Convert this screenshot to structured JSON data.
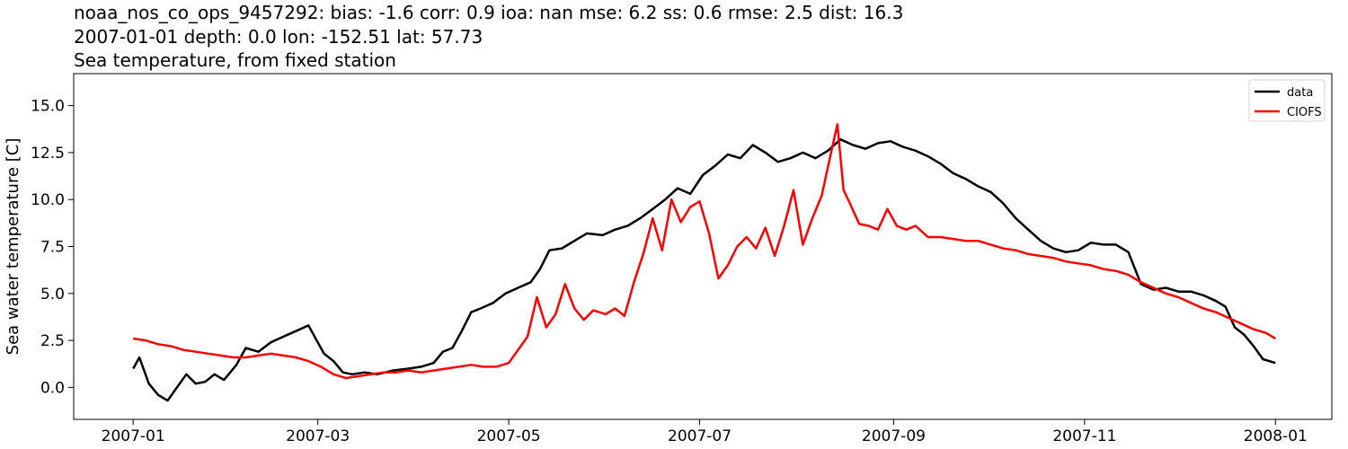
{
  "chart_data": {
    "type": "line",
    "title_lines": [
      "noaa_nos_co_ops_9457292: bias: -1.6  corr: 0.9  ioa: nan  mse: 6.2  ss: 0.6  rmse: 2.5  dist: 16.3",
      "2007-01-01 depth: 0.0 lon: -152.51 lat: 57.73",
      "Sea temperature, from fixed station"
    ],
    "xlabel": "",
    "ylabel": "Sea water temperature [C]",
    "xlim": [
      "2006-12-13",
      "2008-01-19"
    ],
    "ylim": [
      -1.7,
      16.7
    ],
    "x_ticks": [
      "2007-01",
      "2007-03",
      "2007-05",
      "2007-07",
      "2007-09",
      "2007-11",
      "2008-01"
    ],
    "y_ticks": [
      "0.0",
      "2.5",
      "5.0",
      "7.5",
      "10.0",
      "12.5",
      "15.0"
    ],
    "legend": {
      "placement": "upper right",
      "entries": [
        "data",
        "CIOFS"
      ]
    },
    "grid": false,
    "series": [
      {
        "name": "data",
        "color": "#000000",
        "points": [
          [
            "2007-01-01",
            1.0
          ],
          [
            "2007-01-03",
            1.6
          ],
          [
            "2007-01-06",
            0.2
          ],
          [
            "2007-01-09",
            -0.4
          ],
          [
            "2007-01-12",
            -0.7
          ],
          [
            "2007-01-15",
            0.0
          ],
          [
            "2007-01-18",
            0.7
          ],
          [
            "2007-01-21",
            0.2
          ],
          [
            "2007-01-24",
            0.3
          ],
          [
            "2007-01-27",
            0.7
          ],
          [
            "2007-01-30",
            0.4
          ],
          [
            "2007-02-03",
            1.2
          ],
          [
            "2007-02-06",
            2.1
          ],
          [
            "2007-02-10",
            1.9
          ],
          [
            "2007-02-14",
            2.4
          ],
          [
            "2007-02-18",
            2.7
          ],
          [
            "2007-02-22",
            3.0
          ],
          [
            "2007-02-26",
            3.3
          ],
          [
            "2007-03-01",
            2.4
          ],
          [
            "2007-03-03",
            1.8
          ],
          [
            "2007-03-06",
            1.4
          ],
          [
            "2007-03-09",
            0.8
          ],
          [
            "2007-03-12",
            0.7
          ],
          [
            "2007-03-16",
            0.8
          ],
          [
            "2007-03-20",
            0.7
          ],
          [
            "2007-03-25",
            0.9
          ],
          [
            "2007-03-30",
            1.0
          ],
          [
            "2007-04-03",
            1.1
          ],
          [
            "2007-04-07",
            1.3
          ],
          [
            "2007-04-10",
            1.9
          ],
          [
            "2007-04-13",
            2.1
          ],
          [
            "2007-04-16",
            3.0
          ],
          [
            "2007-04-19",
            4.0
          ],
          [
            "2007-04-22",
            4.2
          ],
          [
            "2007-04-26",
            4.5
          ],
          [
            "2007-04-30",
            5.0
          ],
          [
            "2007-05-04",
            5.3
          ],
          [
            "2007-05-08",
            5.6
          ],
          [
            "2007-05-11",
            6.3
          ],
          [
            "2007-05-14",
            7.3
          ],
          [
            "2007-05-18",
            7.4
          ],
          [
            "2007-05-22",
            7.8
          ],
          [
            "2007-05-26",
            8.2
          ],
          [
            "2007-05-31",
            8.1
          ],
          [
            "2007-06-04",
            8.4
          ],
          [
            "2007-06-08",
            8.6
          ],
          [
            "2007-06-12",
            9.0
          ],
          [
            "2007-06-16",
            9.5
          ],
          [
            "2007-06-20",
            10.0
          ],
          [
            "2007-06-24",
            10.6
          ],
          [
            "2007-06-28",
            10.3
          ],
          [
            "2007-07-02",
            11.3
          ],
          [
            "2007-07-06",
            11.8
          ],
          [
            "2007-07-10",
            12.4
          ],
          [
            "2007-07-14",
            12.2
          ],
          [
            "2007-07-18",
            12.9
          ],
          [
            "2007-07-22",
            12.5
          ],
          [
            "2007-07-26",
            12.0
          ],
          [
            "2007-07-30",
            12.2
          ],
          [
            "2007-08-03",
            12.5
          ],
          [
            "2007-08-07",
            12.2
          ],
          [
            "2007-08-11",
            12.6
          ],
          [
            "2007-08-15",
            13.2
          ],
          [
            "2007-08-19",
            12.9
          ],
          [
            "2007-08-23",
            12.7
          ],
          [
            "2007-08-27",
            13.0
          ],
          [
            "2007-08-31",
            13.1
          ],
          [
            "2007-09-04",
            12.8
          ],
          [
            "2007-09-08",
            12.6
          ],
          [
            "2007-09-12",
            12.3
          ],
          [
            "2007-09-16",
            11.9
          ],
          [
            "2007-09-20",
            11.4
          ],
          [
            "2007-09-24",
            11.1
          ],
          [
            "2007-09-28",
            10.7
          ],
          [
            "2007-10-02",
            10.4
          ],
          [
            "2007-10-06",
            9.8
          ],
          [
            "2007-10-10",
            9.0
          ],
          [
            "2007-10-14",
            8.4
          ],
          [
            "2007-10-18",
            7.8
          ],
          [
            "2007-10-22",
            7.4
          ],
          [
            "2007-10-26",
            7.2
          ],
          [
            "2007-10-30",
            7.3
          ],
          [
            "2007-11-03",
            7.7
          ],
          [
            "2007-11-07",
            7.6
          ],
          [
            "2007-11-11",
            7.6
          ],
          [
            "2007-11-15",
            7.2
          ],
          [
            "2007-11-19",
            5.5
          ],
          [
            "2007-11-23",
            5.2
          ],
          [
            "2007-11-27",
            5.3
          ],
          [
            "2007-12-01",
            5.1
          ],
          [
            "2007-12-05",
            5.1
          ],
          [
            "2007-12-09",
            4.9
          ],
          [
            "2007-12-13",
            4.6
          ],
          [
            "2007-12-16",
            4.3
          ],
          [
            "2007-12-19",
            3.2
          ],
          [
            "2007-12-22",
            2.8
          ],
          [
            "2007-12-25",
            2.2
          ],
          [
            "2007-12-28",
            1.5
          ],
          [
            "2008-01-01",
            1.3
          ]
        ]
      },
      {
        "name": "CIOFS",
        "color": "#ff0000",
        "points": [
          [
            "2007-01-01",
            2.6
          ],
          [
            "2007-01-05",
            2.5
          ],
          [
            "2007-01-09",
            2.3
          ],
          [
            "2007-01-13",
            2.2
          ],
          [
            "2007-01-17",
            2.0
          ],
          [
            "2007-01-21",
            1.9
          ],
          [
            "2007-01-25",
            1.8
          ],
          [
            "2007-01-29",
            1.7
          ],
          [
            "2007-02-02",
            1.6
          ],
          [
            "2007-02-06",
            1.6
          ],
          [
            "2007-02-10",
            1.7
          ],
          [
            "2007-02-14",
            1.8
          ],
          [
            "2007-02-18",
            1.7
          ],
          [
            "2007-02-22",
            1.6
          ],
          [
            "2007-02-26",
            1.4
          ],
          [
            "2007-03-02",
            1.1
          ],
          [
            "2007-03-06",
            0.7
          ],
          [
            "2007-03-10",
            0.5
          ],
          [
            "2007-03-14",
            0.6
          ],
          [
            "2007-03-18",
            0.7
          ],
          [
            "2007-03-22",
            0.8
          ],
          [
            "2007-03-26",
            0.8
          ],
          [
            "2007-03-30",
            0.9
          ],
          [
            "2007-04-03",
            0.8
          ],
          [
            "2007-04-07",
            0.9
          ],
          [
            "2007-04-11",
            1.0
          ],
          [
            "2007-04-15",
            1.1
          ],
          [
            "2007-04-19",
            1.2
          ],
          [
            "2007-04-23",
            1.1
          ],
          [
            "2007-04-27",
            1.1
          ],
          [
            "2007-05-01",
            1.3
          ],
          [
            "2007-05-04",
            2.0
          ],
          [
            "2007-05-07",
            2.7
          ],
          [
            "2007-05-10",
            4.8
          ],
          [
            "2007-05-13",
            3.2
          ],
          [
            "2007-05-16",
            3.9
          ],
          [
            "2007-05-19",
            5.5
          ],
          [
            "2007-05-22",
            4.2
          ],
          [
            "2007-05-25",
            3.6
          ],
          [
            "2007-05-28",
            4.1
          ],
          [
            "2007-06-01",
            3.9
          ],
          [
            "2007-06-04",
            4.2
          ],
          [
            "2007-06-07",
            3.8
          ],
          [
            "2007-06-10",
            5.6
          ],
          [
            "2007-06-13",
            7.1
          ],
          [
            "2007-06-16",
            9.0
          ],
          [
            "2007-06-19",
            7.3
          ],
          [
            "2007-06-22",
            10.0
          ],
          [
            "2007-06-25",
            8.8
          ],
          [
            "2007-06-28",
            9.6
          ],
          [
            "2007-07-01",
            9.9
          ],
          [
            "2007-07-04",
            8.2
          ],
          [
            "2007-07-07",
            5.8
          ],
          [
            "2007-07-10",
            6.5
          ],
          [
            "2007-07-13",
            7.5
          ],
          [
            "2007-07-16",
            8.0
          ],
          [
            "2007-07-19",
            7.4
          ],
          [
            "2007-07-22",
            8.5
          ],
          [
            "2007-07-25",
            7.0
          ],
          [
            "2007-07-28",
            8.6
          ],
          [
            "2007-07-31",
            10.5
          ],
          [
            "2007-08-03",
            7.6
          ],
          [
            "2007-08-06",
            9.0
          ],
          [
            "2007-08-09",
            10.2
          ],
          [
            "2007-08-12",
            12.5
          ],
          [
            "2007-08-14",
            14.0
          ],
          [
            "2007-08-16",
            10.5
          ],
          [
            "2007-08-18",
            9.8
          ],
          [
            "2007-08-21",
            8.7
          ],
          [
            "2007-08-24",
            8.6
          ],
          [
            "2007-08-27",
            8.4
          ],
          [
            "2007-08-30",
            9.5
          ],
          [
            "2007-09-02",
            8.6
          ],
          [
            "2007-09-05",
            8.4
          ],
          [
            "2007-09-08",
            8.6
          ],
          [
            "2007-09-12",
            8.0
          ],
          [
            "2007-09-16",
            8.0
          ],
          [
            "2007-09-20",
            7.9
          ],
          [
            "2007-09-24",
            7.8
          ],
          [
            "2007-09-28",
            7.8
          ],
          [
            "2007-10-02",
            7.6
          ],
          [
            "2007-10-06",
            7.4
          ],
          [
            "2007-10-10",
            7.3
          ],
          [
            "2007-10-14",
            7.1
          ],
          [
            "2007-10-18",
            7.0
          ],
          [
            "2007-10-22",
            6.9
          ],
          [
            "2007-10-26",
            6.7
          ],
          [
            "2007-10-30",
            6.6
          ],
          [
            "2007-11-03",
            6.5
          ],
          [
            "2007-11-07",
            6.3
          ],
          [
            "2007-11-11",
            6.2
          ],
          [
            "2007-11-15",
            6.0
          ],
          [
            "2007-11-19",
            5.6
          ],
          [
            "2007-11-23",
            5.3
          ],
          [
            "2007-11-27",
            5.0
          ],
          [
            "2007-12-01",
            4.8
          ],
          [
            "2007-12-05",
            4.5
          ],
          [
            "2007-12-09",
            4.2
          ],
          [
            "2007-12-13",
            4.0
          ],
          [
            "2007-12-17",
            3.7
          ],
          [
            "2007-12-21",
            3.4
          ],
          [
            "2007-12-25",
            3.1
          ],
          [
            "2007-12-29",
            2.9
          ],
          [
            "2008-01-01",
            2.6
          ]
        ]
      }
    ]
  }
}
